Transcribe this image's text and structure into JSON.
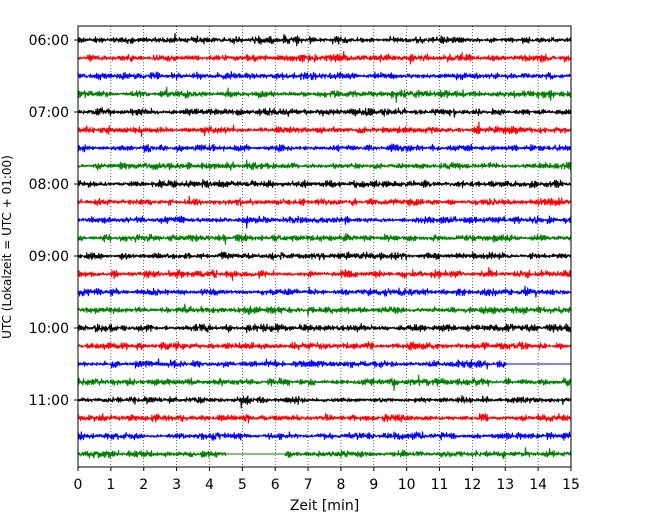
{
  "chart_data": {
    "type": "line",
    "title": "",
    "xlabel": "Zeit  [min]",
    "ylabel": "UTC (Lokalzeit = UTC + 01:00)",
    "xlim": [
      0,
      15
    ],
    "x_ticks": [
      "0",
      "1",
      "2",
      "3",
      "4",
      "5",
      "6",
      "7",
      "8",
      "9",
      "10",
      "11",
      "12",
      "13",
      "14",
      "15"
    ],
    "y_ticks": [
      "06:00",
      "07:00",
      "08:00",
      "09:00",
      "10:00",
      "11:00"
    ],
    "grid": "vertical dotted",
    "trace_minutes": 15,
    "traces": [
      {
        "start": "06:00",
        "color": "#000000"
      },
      {
        "start": "06:15",
        "color": "#ff0000"
      },
      {
        "start": "06:30",
        "color": "#0000ff"
      },
      {
        "start": "06:45",
        "color": "#007f00"
      },
      {
        "start": "07:00",
        "color": "#000000"
      },
      {
        "start": "07:15",
        "color": "#ff0000"
      },
      {
        "start": "07:30",
        "color": "#0000ff"
      },
      {
        "start": "07:45",
        "color": "#007f00"
      },
      {
        "start": "08:00",
        "color": "#000000"
      },
      {
        "start": "08:15",
        "color": "#ff0000"
      },
      {
        "start": "08:30",
        "color": "#0000ff"
      },
      {
        "start": "08:45",
        "color": "#007f00"
      },
      {
        "start": "09:00",
        "color": "#000000"
      },
      {
        "start": "09:15",
        "color": "#ff0000"
      },
      {
        "start": "09:30",
        "color": "#0000ff"
      },
      {
        "start": "09:45",
        "color": "#007f00"
      },
      {
        "start": "10:00",
        "color": "#000000"
      },
      {
        "start": "10:15",
        "color": "#ff0000"
      },
      {
        "start": "10:30",
        "color": "#0000ff",
        "flat_segments": [
          [
            13.05,
            15
          ]
        ]
      },
      {
        "start": "10:45",
        "color": "#007f00"
      },
      {
        "start": "11:00",
        "color": "#000000"
      },
      {
        "start": "11:15",
        "color": "#ff0000"
      },
      {
        "start": "11:30",
        "color": "#0000ff"
      },
      {
        "start": "11:45",
        "color": "#007f00",
        "flat_segments": [
          [
            4.5,
            6.3
          ]
        ]
      }
    ]
  }
}
